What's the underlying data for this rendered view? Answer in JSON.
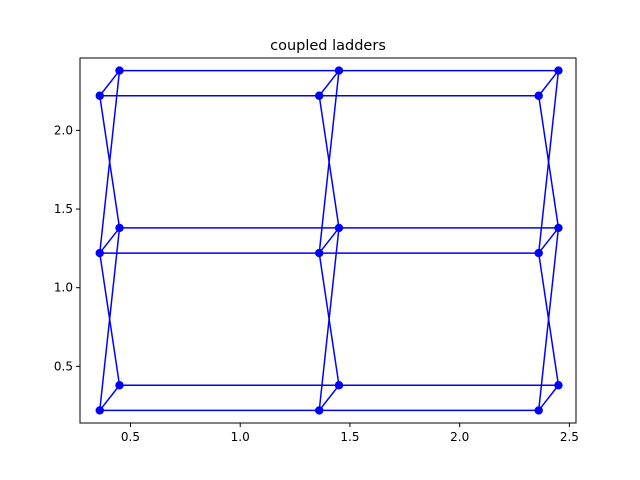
{
  "chart_data": {
    "type": "line",
    "title": "coupled ladders",
    "xlabel": "",
    "ylabel": "",
    "xlim": [
      0.27,
      2.53
    ],
    "ylim": [
      0.14,
      2.46
    ],
    "xticks": [
      0.5,
      1.0,
      1.5,
      2.0,
      2.5
    ],
    "xtick_labels": [
      "0.5",
      "1.0",
      "1.5",
      "2.0",
      "2.5"
    ],
    "yticks": [
      0.5,
      1.0,
      1.5,
      2.0
    ],
    "ytick_labels": [
      "0.5",
      "1.0",
      "1.5",
      "2.0"
    ],
    "grid": false,
    "legend": "none",
    "color": "#0000ff",
    "marker": "circle",
    "points": [
      {
        "x": 0.36,
        "y": 0.22
      },
      {
        "x": 0.45,
        "y": 0.38
      },
      {
        "x": 1.36,
        "y": 0.22
      },
      {
        "x": 1.45,
        "y": 0.38
      },
      {
        "x": 2.36,
        "y": 0.22
      },
      {
        "x": 2.45,
        "y": 0.38
      },
      {
        "x": 0.36,
        "y": 1.22
      },
      {
        "x": 0.45,
        "y": 1.38
      },
      {
        "x": 1.36,
        "y": 1.22
      },
      {
        "x": 1.45,
        "y": 1.38
      },
      {
        "x": 2.36,
        "y": 1.22
      },
      {
        "x": 2.45,
        "y": 1.38
      },
      {
        "x": 0.36,
        "y": 2.22
      },
      {
        "x": 0.45,
        "y": 2.38
      },
      {
        "x": 1.36,
        "y": 2.22
      },
      {
        "x": 1.45,
        "y": 2.38
      },
      {
        "x": 2.36,
        "y": 2.22
      },
      {
        "x": 2.45,
        "y": 2.38
      }
    ],
    "edges": [
      [
        0,
        1
      ],
      [
        2,
        3
      ],
      [
        4,
        5
      ],
      [
        6,
        7
      ],
      [
        8,
        9
      ],
      [
        10,
        11
      ],
      [
        12,
        13
      ],
      [
        14,
        15
      ],
      [
        16,
        17
      ],
      [
        0,
        2
      ],
      [
        2,
        4
      ],
      [
        1,
        3
      ],
      [
        3,
        5
      ],
      [
        6,
        8
      ],
      [
        8,
        10
      ],
      [
        7,
        9
      ],
      [
        9,
        11
      ],
      [
        12,
        14
      ],
      [
        14,
        16
      ],
      [
        13,
        15
      ],
      [
        15,
        17
      ],
      [
        0,
        7
      ],
      [
        1,
        6
      ],
      [
        6,
        13
      ],
      [
        7,
        12
      ],
      [
        2,
        9
      ],
      [
        3,
        8
      ],
      [
        8,
        15
      ],
      [
        9,
        14
      ],
      [
        4,
        11
      ],
      [
        5,
        10
      ],
      [
        10,
        17
      ],
      [
        11,
        16
      ]
    ]
  }
}
